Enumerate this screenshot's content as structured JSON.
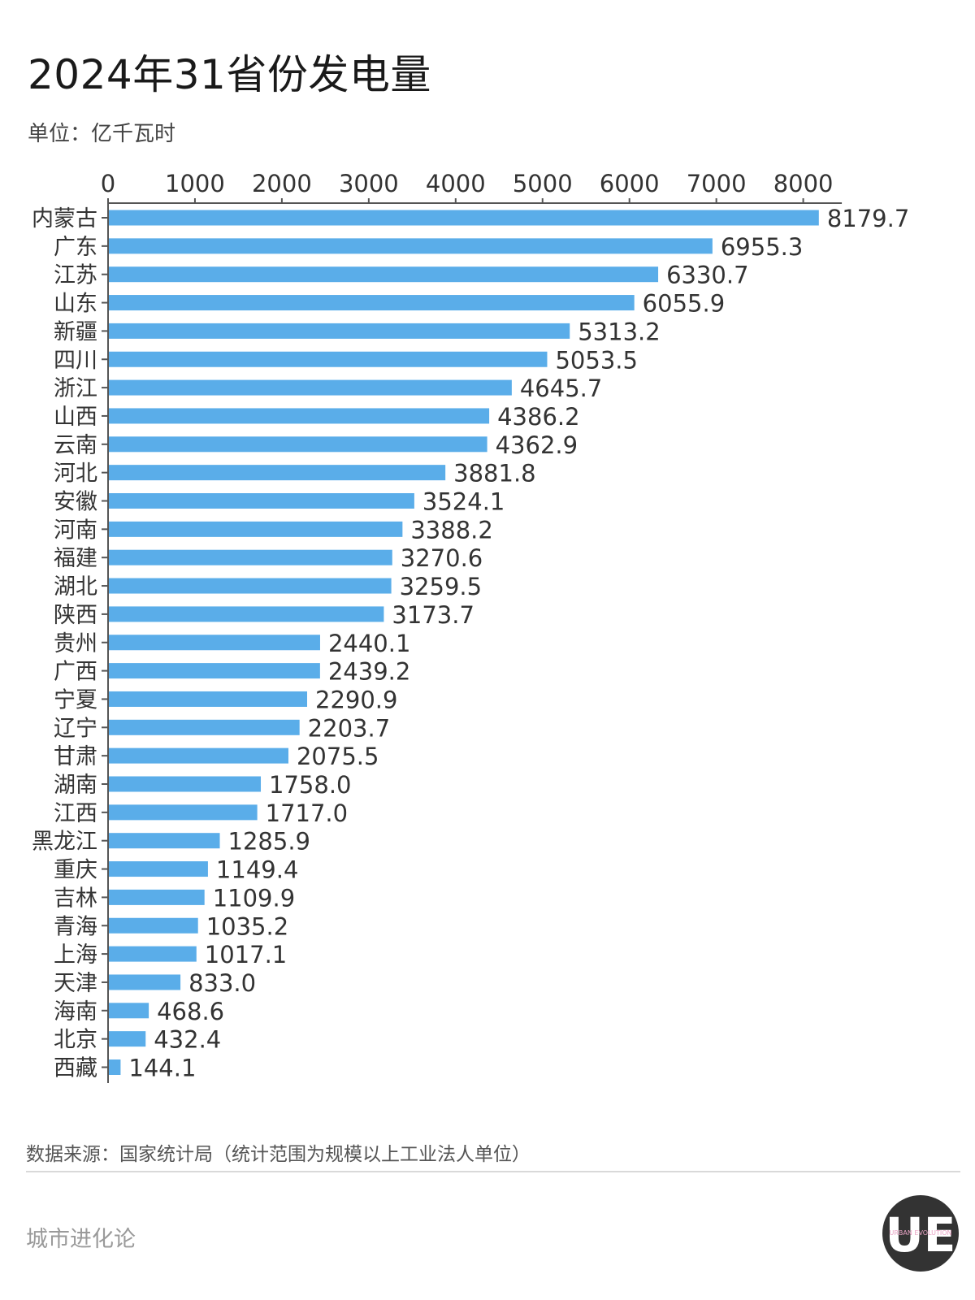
{
  "title": "2024年31省份发电量",
  "unit": "单位：亿千瓦时",
  "source": "数据来源：国家统计局（统计范围为规模以上工业法人单位）",
  "brand": "城市进化论",
  "logo": {
    "icon": "ue-logo-icon",
    "text": "UE",
    "small_text": "URBAN EVOLUTION"
  },
  "colors": {
    "bar": "#5aade9",
    "axis": "#555555",
    "text": "#333333"
  },
  "chart_data": {
    "type": "bar",
    "orientation": "horizontal",
    "xlim": [
      0,
      8500
    ],
    "ticks": [
      0,
      1000,
      2000,
      3000,
      4000,
      5000,
      6000,
      7000,
      8000
    ],
    "tick_labels": [
      "0",
      "1000",
      "2000",
      "3000",
      "4000",
      "5000",
      "6000",
      "7000",
      "8000"
    ],
    "axis_position": "top",
    "grid": false,
    "categories": [
      "内蒙古",
      "广东",
      "江苏",
      "山东",
      "新疆",
      "四川",
      "浙江",
      "山西",
      "云南",
      "河北",
      "安徽",
      "河南",
      "福建",
      "湖北",
      "陕西",
      "贵州",
      "广西",
      "宁夏",
      "辽宁",
      "甘肃",
      "湖南",
      "江西",
      "黑龙江",
      "重庆",
      "吉林",
      "青海",
      "上海",
      "天津",
      "海南",
      "北京",
      "西藏"
    ],
    "values": [
      8179.7,
      6955.3,
      6330.7,
      6055.9,
      5313.2,
      5053.5,
      4645.7,
      4386.2,
      4362.9,
      3881.8,
      3524.1,
      3388.2,
      3270.6,
      3259.5,
      3173.7,
      2440.1,
      2439.2,
      2290.9,
      2203.7,
      2075.5,
      1758.0,
      1717.0,
      1285.9,
      1149.4,
      1109.9,
      1035.2,
      1017.1,
      833.0,
      468.6,
      432.4,
      144.1
    ],
    "value_labels": [
      "8179.7",
      "6955.3",
      "6330.7",
      "6055.9",
      "5313.2",
      "5053.5",
      "4645.7",
      "4386.2",
      "4362.9",
      "3881.8",
      "3524.1",
      "3388.2",
      "3270.6",
      "3259.5",
      "3173.7",
      "2440.1",
      "2439.2",
      "2290.9",
      "2203.7",
      "2075.5",
      "1758.0",
      "1717.0",
      "1285.9",
      "1149.4",
      "1109.9",
      "1035.2",
      "1017.1",
      "833.0",
      "468.6",
      "432.4",
      "144.1"
    ]
  }
}
